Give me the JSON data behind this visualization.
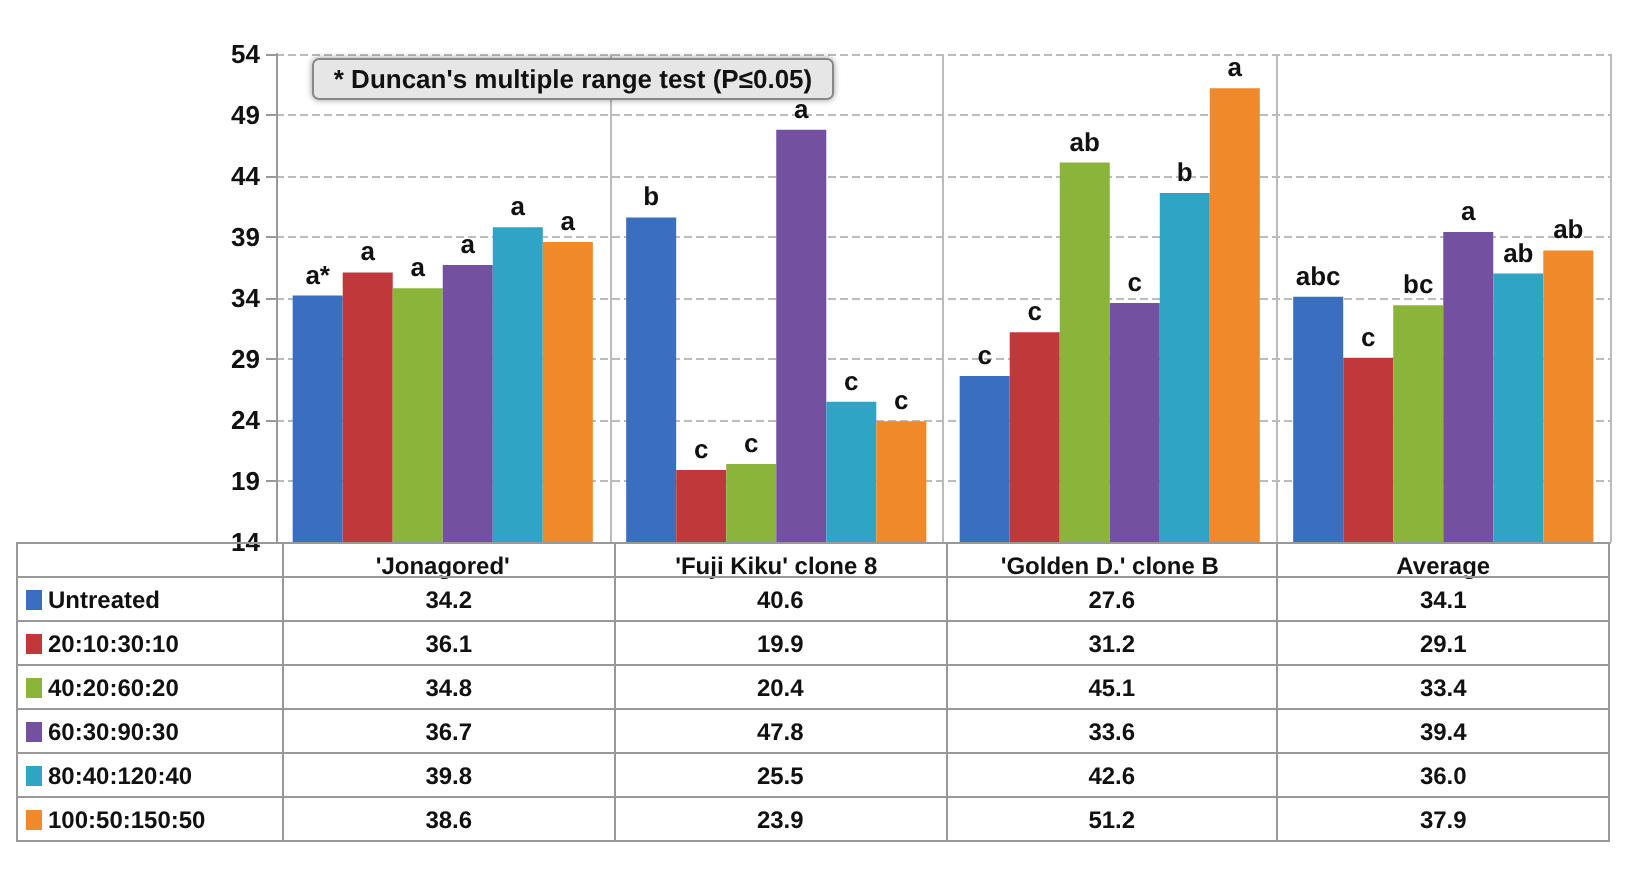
{
  "chart_data": {
    "type": "bar",
    "categories": [
      "'Jonagored'",
      "'Fuji Kiku' clone 8",
      "'Golden D.' clone B",
      "Average"
    ],
    "series": [
      {
        "name": "Untreated",
        "color": "#3a6fbf",
        "values": [
          34.2,
          40.6,
          27.6,
          34.1
        ]
      },
      {
        "name": "20:10:30:10",
        "color": "#c0383a",
        "values": [
          36.1,
          19.9,
          31.2,
          29.1
        ]
      },
      {
        "name": "40:20:60:20",
        "color": "#8bb43a",
        "values": [
          34.8,
          20.4,
          45.1,
          33.4
        ]
      },
      {
        "name": "60:30:90:30",
        "color": "#7350a0",
        "values": [
          36.7,
          47.8,
          33.6,
          39.4
        ]
      },
      {
        "name": "80:40:120:40",
        "color": "#2fa4c4",
        "values": [
          39.8,
          25.5,
          42.6,
          36.0
        ],
        "value_labels": [
          "39.8",
          "25.5",
          "42.6",
          "36.0"
        ]
      },
      {
        "name": "100:50:150:50",
        "color": "#f0892a",
        "values": [
          38.6,
          23.9,
          51.2,
          37.9
        ]
      }
    ],
    "ylim": [
      14,
      54
    ],
    "yticks": [
      14,
      19,
      24,
      29,
      34,
      39,
      44,
      49,
      54
    ],
    "grid": true,
    "legend": "bottom left",
    "data_labels": true,
    "annotations": [
      "* Duncan's multiple range test (P≤0.05)",
      {
        "text": "a*",
        "y": 34.2
      },
      {
        "text": "a",
        "y": 36.1
      },
      {
        "text": "a",
        "y": 34.8
      },
      {
        "text": "a",
        "y": 36.7
      },
      {
        "text": "a",
        "y": 39.8
      },
      {
        "text": "a",
        "y": 38.6
      },
      {
        "text": "b",
        "y": 40.6
      },
      {
        "text": "c",
        "y": 19.9
      },
      {
        "text": "c",
        "y": 20.4
      },
      {
        "text": "a",
        "y": 47.8
      },
      {
        "text": "c",
        "y": 25.5
      },
      {
        "text": "c",
        "y": 23.9
      },
      {
        "text": "c",
        "y": 27.6
      },
      {
        "text": "c",
        "y": 31.2
      },
      {
        "text": "ab",
        "y": 45.1
      },
      {
        "text": "c",
        "y": 33.6
      },
      {
        "text": "b",
        "y": 42.6
      },
      {
        "text": "a",
        "y": 51.2
      },
      {
        "text": "abc",
        "y": 34.1
      },
      {
        "text": "c",
        "y": 29.1
      },
      {
        "text": "bc",
        "y": 33.4
      },
      {
        "text": "a",
        "y": 39.4
      },
      {
        "text": "ab",
        "y": 36.0
      },
      {
        "text": "ab",
        "y": 37.9
      }
    ]
  }
}
